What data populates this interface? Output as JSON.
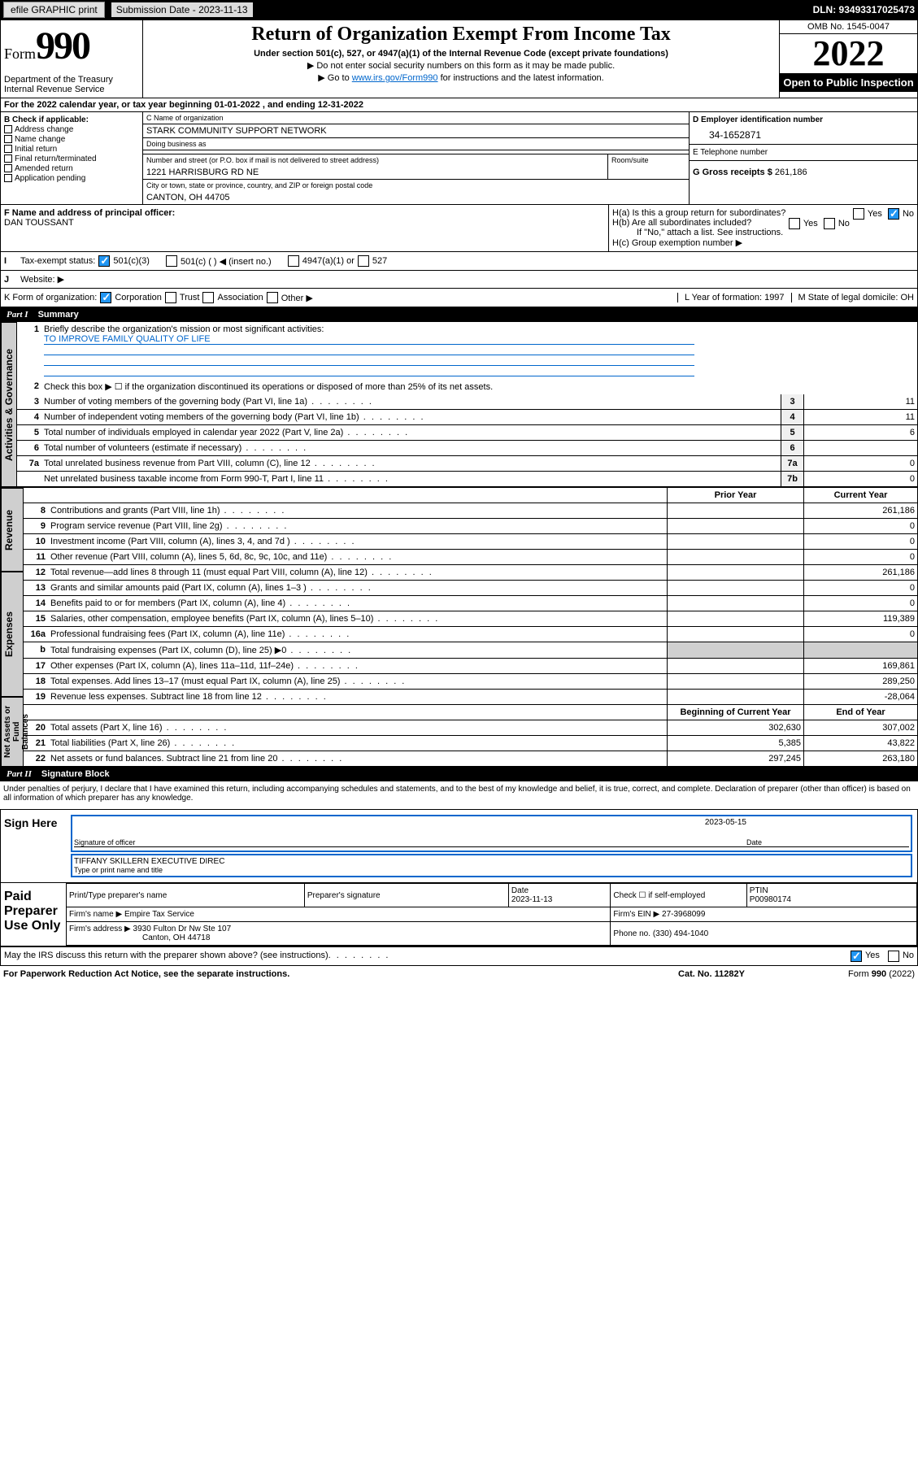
{
  "topbar": {
    "efile": "efile GRAPHIC print",
    "sub_label": "Submission Date - 2023-11-13",
    "dln": "DLN: 93493317025473"
  },
  "header": {
    "form_prefix": "Form",
    "form_num": "990",
    "title": "Return of Organization Exempt From Income Tax",
    "sub1": "Under section 501(c), 527, or 4947(a)(1) of the Internal Revenue Code (except private foundations)",
    "sub2": "Do not enter social security numbers on this form as it may be made public.",
    "sub3_pre": "Go to ",
    "sub3_link": "www.irs.gov/Form990",
    "sub3_post": " for instructions and the latest information.",
    "dept": "Department of the Treasury\nInternal Revenue Service",
    "omb": "OMB No. 1545-0047",
    "year": "2022",
    "inspect": "Open to Public Inspection"
  },
  "period": "For the 2022 calendar year, or tax year beginning 01-01-2022    , and ending 12-31-2022",
  "boxB": {
    "label": "B Check if applicable:",
    "items": [
      "Address change",
      "Name change",
      "Initial return",
      "Final return/terminated",
      "Amended return",
      "Application pending"
    ]
  },
  "boxC": {
    "name_label": "C Name of organization",
    "name": "STARK COMMUNITY SUPPORT NETWORK",
    "dba_label": "Doing business as",
    "dba": "",
    "addr_label": "Number and street (or P.O. box if mail is not delivered to street address)",
    "room_label": "Room/suite",
    "addr": "1221 HARRISBURG RD NE",
    "city_label": "City or town, state or province, country, and ZIP or foreign postal code",
    "city": "CANTON, OH  44705"
  },
  "boxD": {
    "label": "D Employer identification number",
    "ein": "34-1652871"
  },
  "boxE": {
    "label": "E Telephone number",
    "val": ""
  },
  "boxG": {
    "label": "G Gross receipts $",
    "val": "261,186"
  },
  "boxF": {
    "label": "F  Name and address of principal officer:",
    "val": "DAN TOUSSANT"
  },
  "boxH": {
    "ha": "H(a)  Is this a group return for subordinates?",
    "hb": "H(b)  Are all subordinates included?",
    "hb2": "If \"No,\" attach a list. See instructions.",
    "hc": "H(c)  Group exemption number ▶",
    "yes": "Yes",
    "no": "No"
  },
  "lineI": {
    "label": "Tax-exempt status:",
    "o1": "501(c)(3)",
    "o2": "501(c) (  ) ◀ (insert no.)",
    "o3": "4947(a)(1) or",
    "o4": "527"
  },
  "lineJ": {
    "label": "Website: ▶",
    "val": ""
  },
  "lineK": {
    "label": "K Form of organization:",
    "o1": "Corporation",
    "o2": "Trust",
    "o3": "Association",
    "o4": "Other ▶"
  },
  "lineL": {
    "label": "L Year of formation: 1997"
  },
  "lineM": {
    "label": "M State of legal domicile: OH"
  },
  "part1": {
    "title": "Part I",
    "name": "Summary"
  },
  "summary": {
    "q1": "Briefly describe the organization's mission or most significant activities:",
    "q1v": "TO IMPROVE FAMILY QUALITY OF LIFE",
    "q2": "Check this box ▶ ☐  if the organization discontinued its operations or disposed of more than 25% of its net assets.",
    "rows": [
      {
        "n": "3",
        "t": "Number of voting members of the governing body (Part VI, line 1a)",
        "rn": "3",
        "v": "11"
      },
      {
        "n": "4",
        "t": "Number of independent voting members of the governing body (Part VI, line 1b)",
        "rn": "4",
        "v": "11"
      },
      {
        "n": "5",
        "t": "Total number of individuals employed in calendar year 2022 (Part V, line 2a)",
        "rn": "5",
        "v": "6"
      },
      {
        "n": "6",
        "t": "Total number of volunteers (estimate if necessary)",
        "rn": "6",
        "v": ""
      },
      {
        "n": "7a",
        "t": "Total unrelated business revenue from Part VIII, column (C), line 12",
        "rn": "7a",
        "v": "0"
      },
      {
        "n": "",
        "t": "Net unrelated business taxable income from Form 990-T, Part I, line 11",
        "rn": "7b",
        "v": "0"
      }
    ]
  },
  "revexp": {
    "h_prior": "Prior Year",
    "h_curr": "Current Year",
    "h_beg": "Beginning of Current Year",
    "h_end": "End of Year",
    "revenue": [
      {
        "n": "8",
        "t": "Contributions and grants (Part VIII, line 1h)",
        "p": "",
        "c": "261,186"
      },
      {
        "n": "9",
        "t": "Program service revenue (Part VIII, line 2g)",
        "p": "",
        "c": "0"
      },
      {
        "n": "10",
        "t": "Investment income (Part VIII, column (A), lines 3, 4, and 7d )",
        "p": "",
        "c": "0"
      },
      {
        "n": "11",
        "t": "Other revenue (Part VIII, column (A), lines 5, 6d, 8c, 9c, 10c, and 11e)",
        "p": "",
        "c": "0"
      },
      {
        "n": "12",
        "t": "Total revenue—add lines 8 through 11 (must equal Part VIII, column (A), line 12)",
        "p": "",
        "c": "261,186"
      }
    ],
    "expenses": [
      {
        "n": "13",
        "t": "Grants and similar amounts paid (Part IX, column (A), lines 1–3 )",
        "p": "",
        "c": "0"
      },
      {
        "n": "14",
        "t": "Benefits paid to or for members (Part IX, column (A), line 4)",
        "p": "",
        "c": "0"
      },
      {
        "n": "15",
        "t": "Salaries, other compensation, employee benefits (Part IX, column (A), lines 5–10)",
        "p": "",
        "c": "119,389"
      },
      {
        "n": "16a",
        "t": "Professional fundraising fees (Part IX, column (A), line 11e)",
        "p": "",
        "c": "0"
      },
      {
        "n": "b",
        "t": "Total fundraising expenses (Part IX, column (D), line 25) ▶0",
        "p": "",
        "c": ""
      },
      {
        "n": "17",
        "t": "Other expenses (Part IX, column (A), lines 11a–11d, 11f–24e)",
        "p": "",
        "c": "169,861"
      },
      {
        "n": "18",
        "t": "Total expenses. Add lines 13–17 (must equal Part IX, column (A), line 25)",
        "p": "",
        "c": "289,250"
      },
      {
        "n": "19",
        "t": "Revenue less expenses. Subtract line 18 from line 12",
        "p": "",
        "c": "-28,064"
      }
    ],
    "netassets": [
      {
        "n": "20",
        "t": "Total assets (Part X, line 16)",
        "p": "302,630",
        "c": "307,002"
      },
      {
        "n": "21",
        "t": "Total liabilities (Part X, line 26)",
        "p": "5,385",
        "c": "43,822"
      },
      {
        "n": "22",
        "t": "Net assets or fund balances. Subtract line 21 from line 20",
        "p": "297,245",
        "c": "263,180"
      }
    ]
  },
  "vtabs": {
    "gov": "Activities & Governance",
    "rev": "Revenue",
    "exp": "Expenses",
    "net": "Net Assets or\nFund Balances"
  },
  "part2": {
    "title": "Part II",
    "name": "Signature Block"
  },
  "sig": {
    "decl": "Under penalties of perjury, I declare that I have examined this return, including accompanying schedules and statements, and to the best of my knowledge and belief, it is true, correct, and complete. Declaration of preparer (other than officer) is based on all information of which preparer has any knowledge.",
    "sign_here": "Sign Here",
    "date": "2023-05-15",
    "sig_label": "Signature of officer",
    "date_label": "Date",
    "name": "TIFFANY SKILLERN  EXECUTIVE DIREC",
    "name_label": "Type or print name and title",
    "paid": "Paid Preparer Use Only",
    "prep_name_label": "Print/Type preparer's name",
    "prep_sig_label": "Preparer's signature",
    "prep_date_label": "Date",
    "prep_date": "2023-11-13",
    "check_label": "Check ☐ if self-employed",
    "ptin_label": "PTIN",
    "ptin": "P00980174",
    "firm_name_label": "Firm's name   ▶",
    "firm_name": "Empire Tax Service",
    "firm_ein_label": "Firm's EIN ▶",
    "firm_ein": "27-3968099",
    "firm_addr_label": "Firm's address ▶",
    "firm_addr": "3930 Fulton Dr Nw Ste 107",
    "firm_city": "Canton, OH  44718",
    "phone_label": "Phone no.",
    "phone": "(330) 494-1040",
    "discuss": "May the IRS discuss this return with the preparer shown above? (see instructions)"
  },
  "footer": {
    "f1": "For Paperwork Reduction Act Notice, see the separate instructions.",
    "f2": "Cat. No. 11282Y",
    "f3": "Form 990 (2022)"
  }
}
